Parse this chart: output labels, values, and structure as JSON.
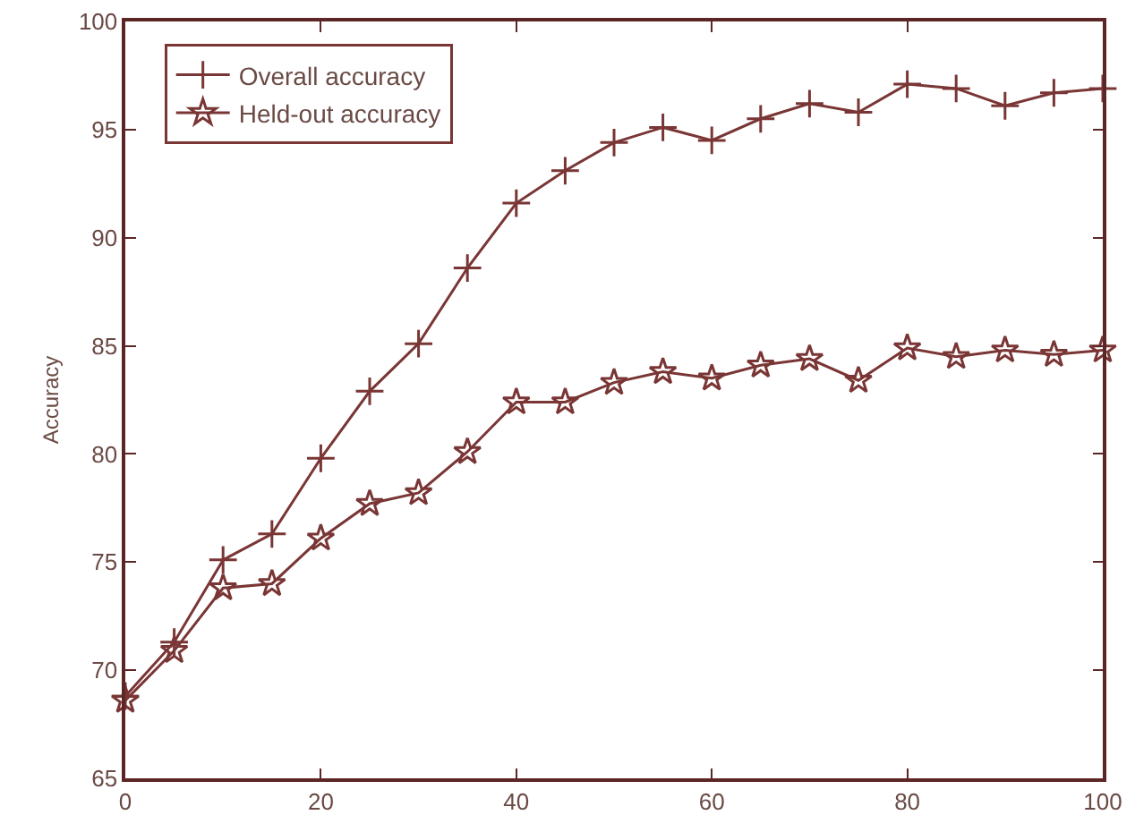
{
  "chart_data": {
    "type": "line",
    "ylabel": "Accuracy",
    "x": [
      0,
      5,
      10,
      15,
      20,
      25,
      30,
      35,
      40,
      45,
      50,
      55,
      60,
      65,
      70,
      75,
      80,
      85,
      90,
      95,
      100
    ],
    "series": [
      {
        "name": "Overall accuracy",
        "color": "#7a3535",
        "marker": "cross",
        "values": [
          68.8,
          71.3,
          75.1,
          76.3,
          79.8,
          82.9,
          85.1,
          88.6,
          91.6,
          93.1,
          94.4,
          95.1,
          94.5,
          95.5,
          96.2,
          95.8,
          97.1,
          96.9,
          96.1,
          96.7,
          96.9
        ]
      },
      {
        "name": "Held-out accuracy",
        "color": "#7a3535",
        "marker": "star",
        "values": [
          68.6,
          70.9,
          73.8,
          74.0,
          76.1,
          77.7,
          78.2,
          80.1,
          82.4,
          82.4,
          83.3,
          83.8,
          83.5,
          84.1,
          84.4,
          83.4,
          84.9,
          84.5,
          84.8,
          84.6,
          84.8
        ]
      }
    ],
    "xlim": [
      0,
      100
    ],
    "xticks": [
      0,
      20,
      40,
      60,
      80,
      100
    ],
    "ylim": [
      65,
      100
    ],
    "yticks": [
      65,
      70,
      75,
      80,
      85,
      90,
      95,
      100
    ],
    "grid": false,
    "legend": "top left",
    "line_style": "solid"
  }
}
